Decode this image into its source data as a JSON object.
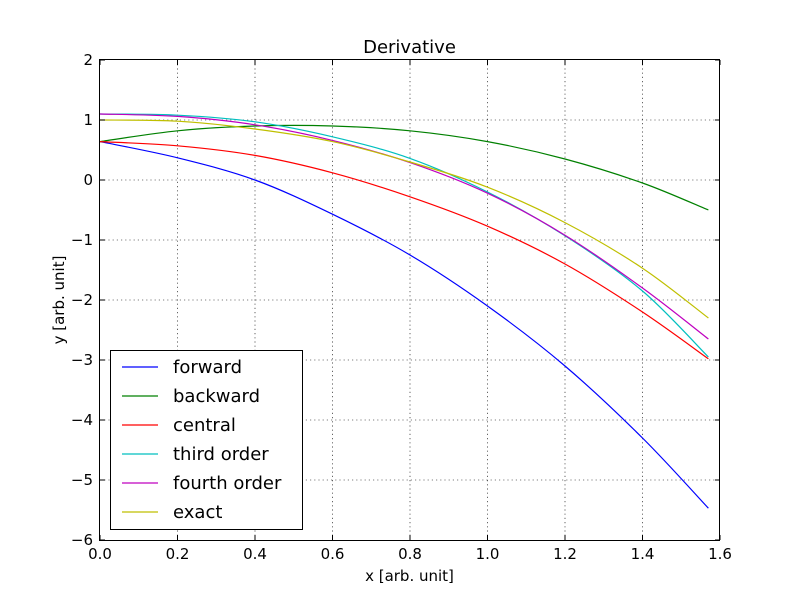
{
  "chart_data": {
    "type": "line",
    "title": "Derivative",
    "xlabel": "x [arb. unit]",
    "ylabel": "y [arb. unit]",
    "xlim": [
      0.0,
      1.6
    ],
    "ylim": [
      -6,
      2
    ],
    "xticks": [
      "0.0",
      "0.2",
      "0.4",
      "0.6",
      "0.8",
      "1.0",
      "1.2",
      "1.4",
      "1.6"
    ],
    "yticks": [
      "−6",
      "−5",
      "−4",
      "−3",
      "−2",
      "−1",
      "0",
      "1",
      "2"
    ],
    "grid": true,
    "legend_position": "lower-left",
    "series": [
      {
        "name": "forward",
        "color": "#0000ff",
        "x": [
          0.0,
          0.2,
          0.4,
          0.6,
          0.8,
          1.0,
          1.2,
          1.4,
          1.57
        ],
        "y": [
          0.64,
          0.37,
          0.0,
          -0.57,
          -1.25,
          -2.1,
          -3.1,
          -4.3,
          -5.47
        ]
      },
      {
        "name": "backward",
        "color": "#008000",
        "x": [
          0.0,
          0.2,
          0.4,
          0.6,
          0.8,
          1.0,
          1.2,
          1.4,
          1.57
        ],
        "y": [
          0.64,
          0.82,
          0.9,
          0.9,
          0.82,
          0.64,
          0.35,
          -0.05,
          -0.5
        ]
      },
      {
        "name": "central",
        "color": "#ff0000",
        "x": [
          0.0,
          0.2,
          0.4,
          0.6,
          0.8,
          1.0,
          1.2,
          1.4,
          1.57
        ],
        "y": [
          0.64,
          0.57,
          0.41,
          0.12,
          -0.28,
          -0.77,
          -1.4,
          -2.2,
          -2.98
        ]
      },
      {
        "name": "third order",
        "color": "#00bfbf",
        "x": [
          0.0,
          0.2,
          0.4,
          0.6,
          0.8,
          1.0,
          1.2,
          1.4,
          1.57
        ],
        "y": [
          1.1,
          1.08,
          0.97,
          0.72,
          0.36,
          -0.2,
          -0.93,
          -1.85,
          -2.95
        ]
      },
      {
        "name": "fourth order",
        "color": "#bf00bf",
        "x": [
          0.0,
          0.2,
          0.4,
          0.6,
          0.8,
          1.0,
          1.2,
          1.4,
          1.57
        ],
        "y": [
          1.1,
          1.06,
          0.92,
          0.66,
          0.29,
          -0.22,
          -0.92,
          -1.8,
          -2.65
        ]
      },
      {
        "name": "exact",
        "color": "#bfbf00",
        "x": [
          0.0,
          0.2,
          0.4,
          0.6,
          0.8,
          1.0,
          1.2,
          1.4,
          1.57
        ],
        "y": [
          1.0,
          0.98,
          0.85,
          0.64,
          0.3,
          -0.12,
          -0.71,
          -1.47,
          -2.3
        ]
      }
    ]
  }
}
